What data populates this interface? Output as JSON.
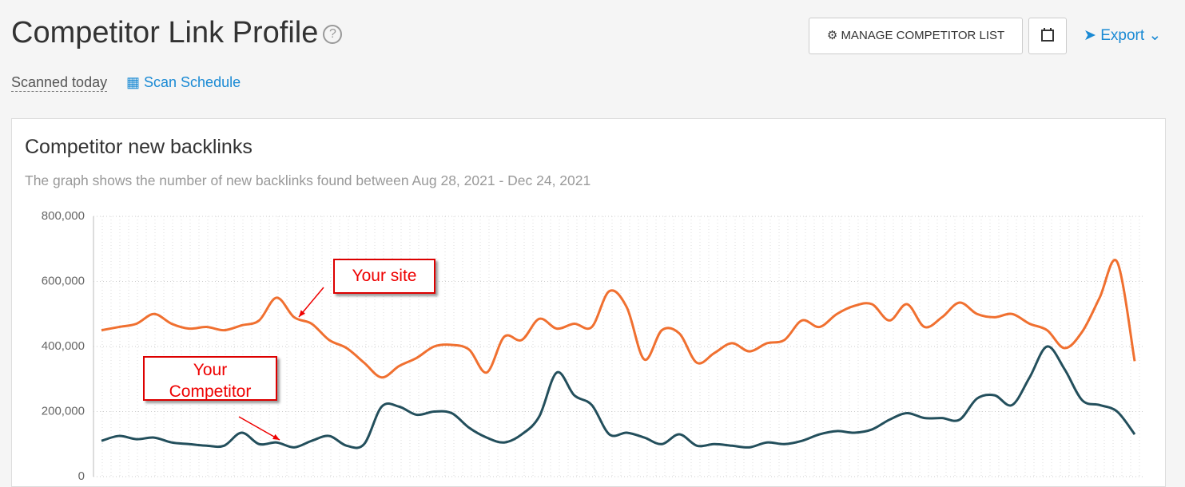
{
  "header": {
    "title": "Competitor Link Profile",
    "manage_button": "MANAGE COMPETITOR LIST",
    "export": "Export",
    "scanned": "Scanned today",
    "schedule": "Scan Schedule"
  },
  "chart_data": {
    "type": "line",
    "title": "Competitor new backlinks",
    "subtitle": "The graph shows the number of new backlinks found between Aug 28, 2021 - Dec 24, 2021",
    "ylim": [
      0,
      800000
    ],
    "yticks": [
      0,
      {
        "value": 200000,
        "label": "200,000"
      },
      {
        "value": 400000,
        "label": "400,000"
      },
      {
        "value": 600000,
        "label": "600,000"
      },
      {
        "value": 800000,
        "label": "800,000"
      }
    ],
    "grid": true,
    "annotations": [
      "Your site",
      "Your Competitor"
    ],
    "series": [
      {
        "color": "#f07030",
        "values": [
          450000,
          460000,
          470000,
          500000,
          470000,
          455000,
          460000,
          450000,
          465000,
          480000,
          550000,
          490000,
          470000,
          420000,
          395000,
          350000,
          305000,
          340000,
          365000,
          400000,
          405000,
          390000,
          320000,
          430000,
          420000,
          485000,
          455000,
          470000,
          460000,
          570000,
          520000,
          360000,
          450000,
          440000,
          350000,
          380000,
          410000,
          385000,
          410000,
          420000,
          480000,
          460000,
          500000,
          525000,
          530000,
          480000,
          530000,
          460000,
          490000,
          535000,
          500000,
          490000,
          500000,
          470000,
          450000,
          395000,
          445000,
          550000,
          660000,
          355000
        ]
      },
      {
        "color": "#234f5c",
        "values": [
          110000,
          125000,
          115000,
          120000,
          105000,
          100000,
          95000,
          95000,
          135000,
          100000,
          105000,
          90000,
          110000,
          125000,
          95000,
          100000,
          215000,
          215000,
          190000,
          200000,
          195000,
          150000,
          120000,
          105000,
          130000,
          185000,
          320000,
          250000,
          220000,
          130000,
          135000,
          120000,
          100000,
          130000,
          95000,
          100000,
          95000,
          90000,
          105000,
          100000,
          110000,
          130000,
          140000,
          135000,
          145000,
          175000,
          195000,
          180000,
          180000,
          175000,
          240000,
          250000,
          220000,
          305000,
          400000,
          330000,
          235000,
          220000,
          200000,
          130000
        ]
      }
    ]
  }
}
